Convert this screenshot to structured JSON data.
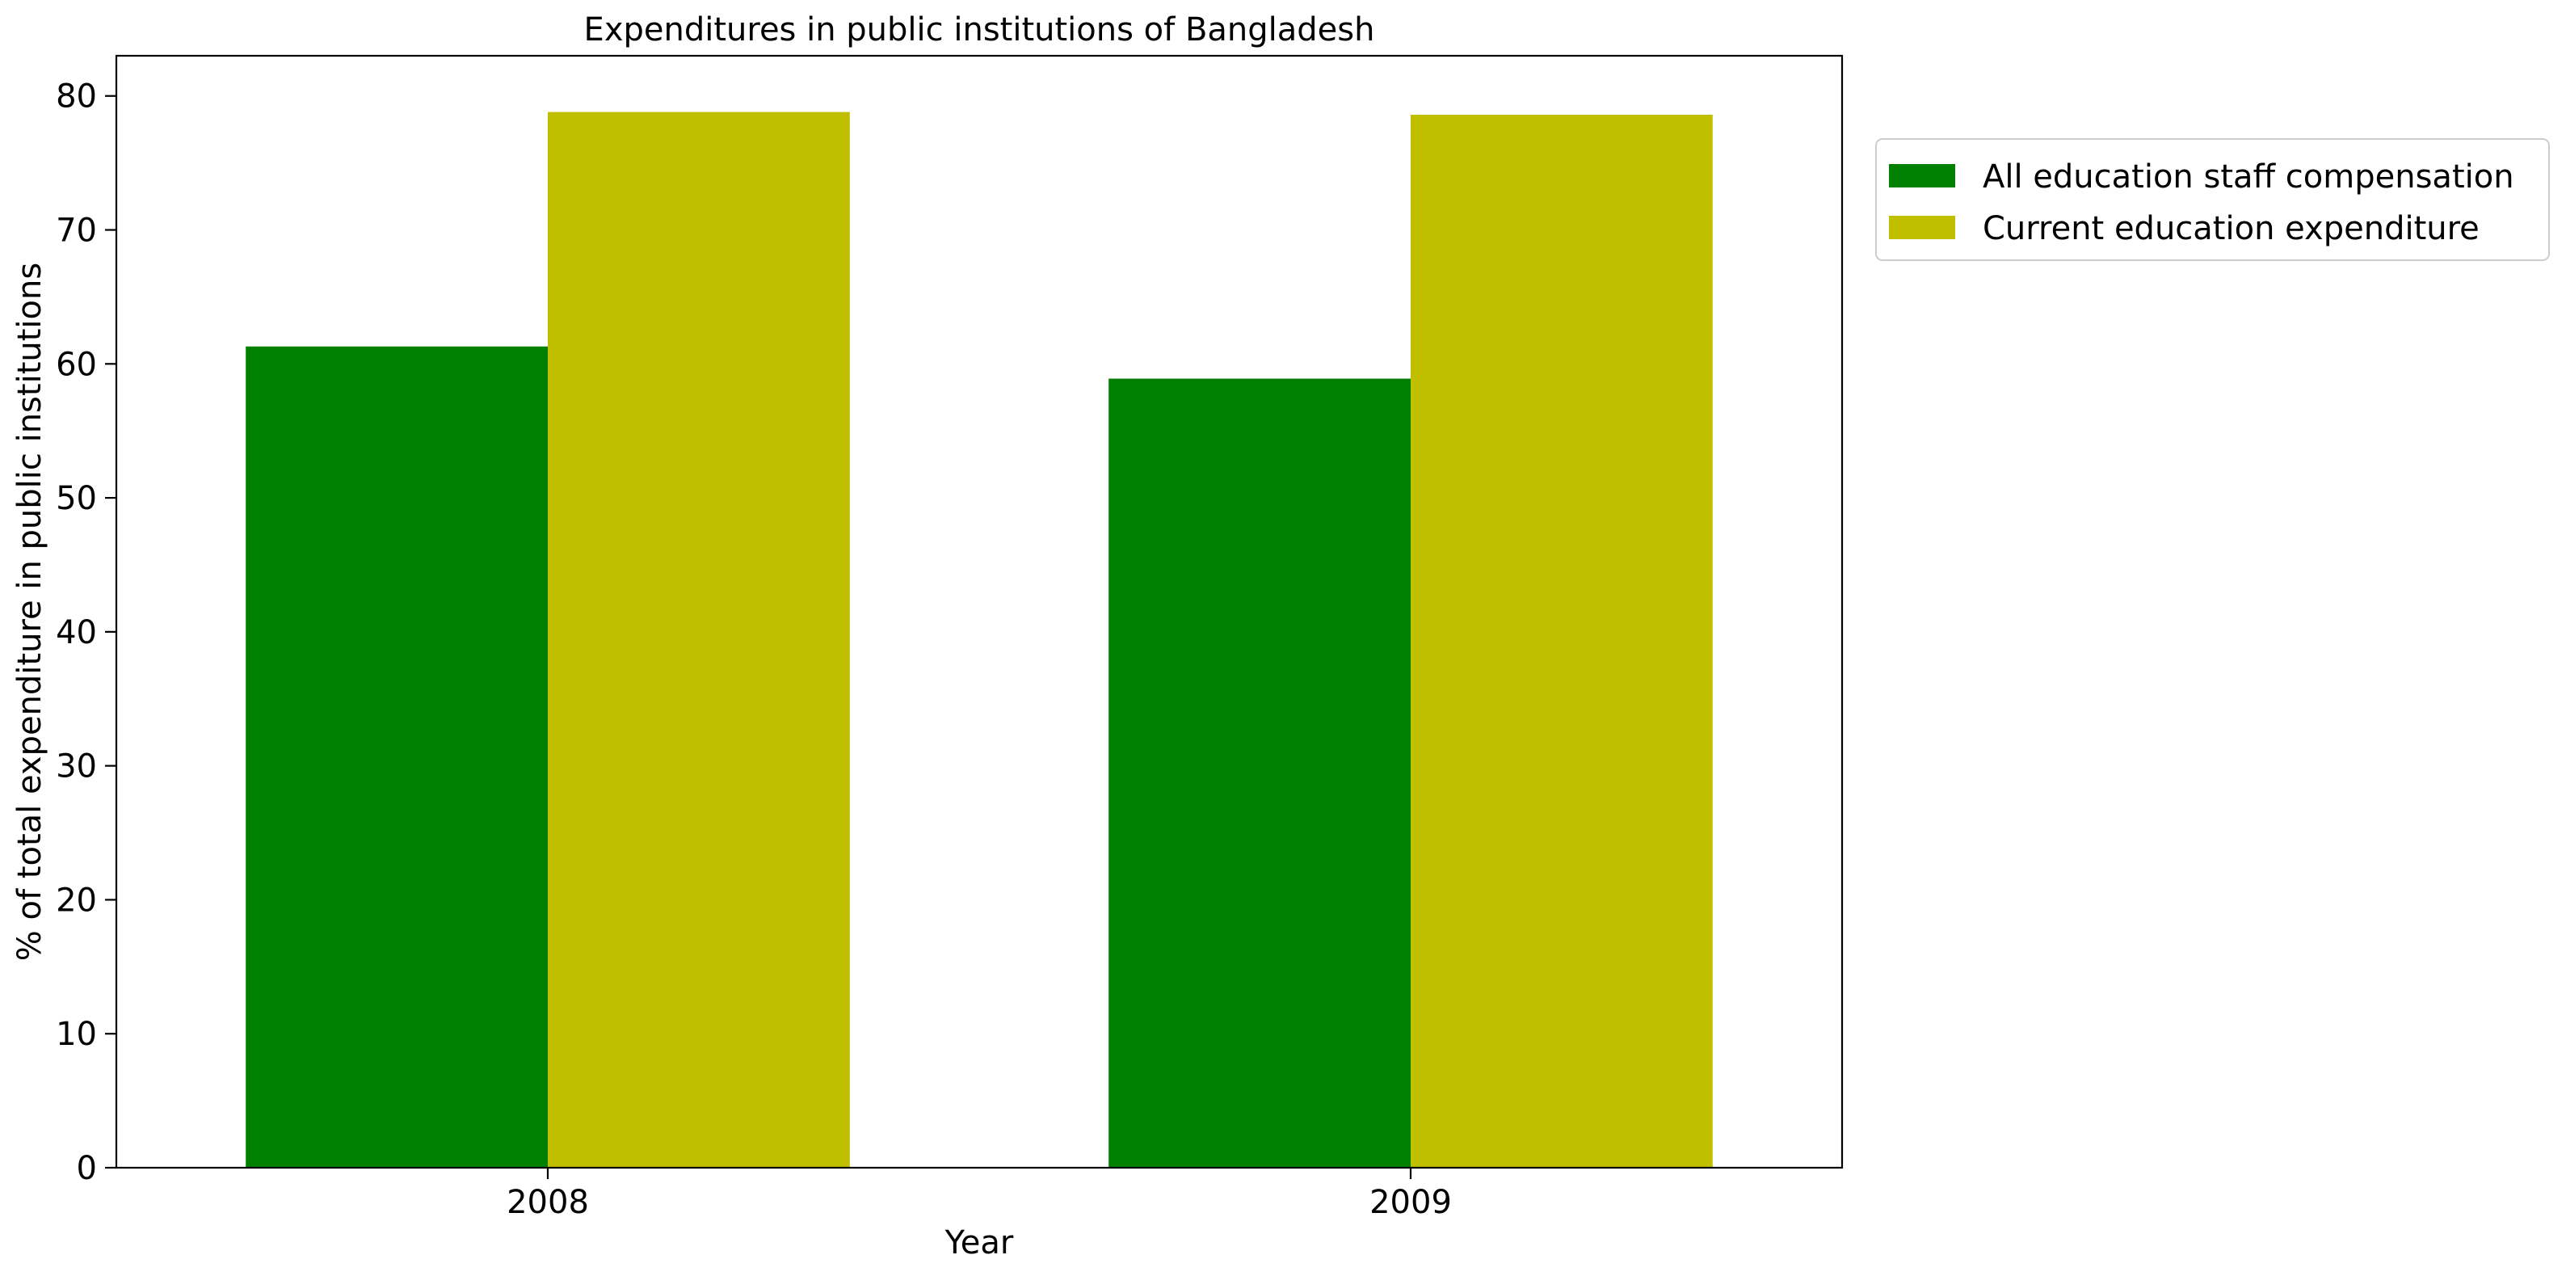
{
  "chart_data": {
    "type": "bar",
    "title": "Expenditures in public institutions of Bangladesh",
    "xlabel": "Year",
    "ylabel": "% of total expenditure in public institutions",
    "categories": [
      "2008",
      "2009"
    ],
    "series": [
      {
        "name": "All education staff compensation",
        "values": [
          61.3,
          58.9
        ],
        "color": "#008000"
      },
      {
        "name": "Current education expenditure",
        "values": [
          78.8,
          78.6
        ],
        "color": "#bfbf00"
      }
    ],
    "ylim": [
      0,
      83
    ],
    "yticks": [
      0,
      10,
      20,
      30,
      40,
      50,
      60,
      70,
      80
    ],
    "grid": false,
    "legend_position": "outside-right-top"
  }
}
